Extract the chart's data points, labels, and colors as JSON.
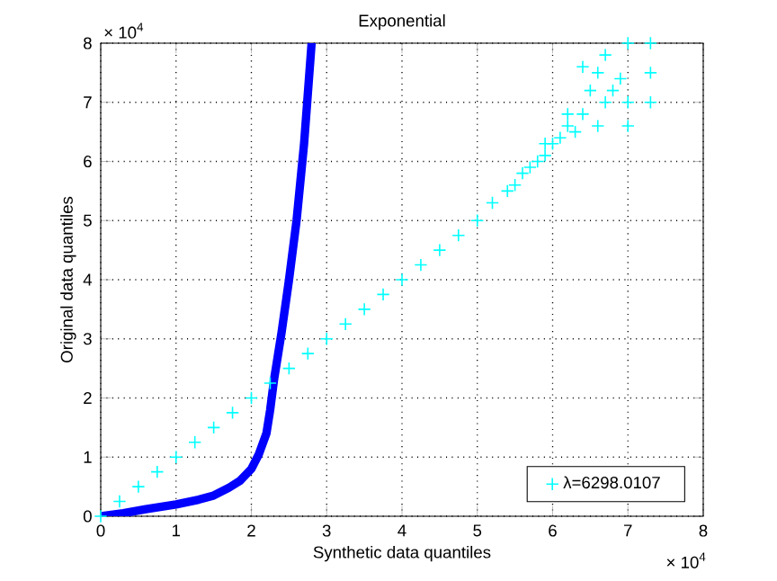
{
  "chart_data": {
    "type": "scatter",
    "title": "Exponential",
    "xlabel": "Synthetic data quantiles",
    "ylabel": "Original data quantiles",
    "annotations": [
      "× 10$^{4}$",
      "× 10$^{4}$"
    ],
    "xlim": [
      0,
      8
    ],
    "ylim": [
      0,
      8
    ],
    "xticks": [
      0,
      1,
      2,
      3,
      4,
      5,
      6,
      7,
      8
    ],
    "yticks": [
      0,
      1,
      2,
      3,
      4,
      5,
      6,
      7,
      8
    ],
    "grid": true,
    "legend": "bottom right",
    "series": [
      {
        "name": "λ=6298.0107",
        "marker": "cross",
        "color": "#00ffff",
        "x": [
          0,
          0.25,
          0.5,
          0.75,
          1,
          1.25,
          1.5,
          1.75,
          2,
          2.25,
          2.5,
          2.75,
          3,
          3.25,
          3.5,
          3.75,
          4,
          4.25,
          4.5,
          4.75,
          5,
          5.2,
          5.4,
          5.5,
          5.6,
          5.7,
          5.8,
          5.9,
          6,
          6.1,
          6.2,
          6.3,
          6.4,
          6.5,
          6.6,
          6.6,
          6.7,
          6.7,
          6.8,
          6.9,
          7.0,
          7.0,
          7.0,
          7.3,
          7.3,
          7.3,
          5.9,
          6.2,
          6.4
        ],
        "values": [
          0,
          0.25,
          0.5,
          0.75,
          1,
          1.25,
          1.5,
          1.75,
          2,
          2.25,
          2.5,
          2.75,
          3,
          3.25,
          3.5,
          3.75,
          4,
          4.25,
          4.5,
          4.75,
          5,
          5.3,
          5.5,
          5.6,
          5.8,
          5.9,
          6.0,
          6.1,
          6.3,
          6.4,
          6.6,
          6.5,
          6.8,
          7.2,
          7.5,
          6.6,
          7.8,
          7.0,
          7.2,
          7.4,
          8.0,
          7.0,
          6.6,
          7.0,
          7.5,
          8.0,
          6.3,
          6.8,
          7.6
        ]
      },
      {
        "type": "line",
        "color": "#0000ff",
        "x": [
          0,
          0.3,
          0.6,
          1,
          1.3,
          1.5,
          1.7,
          1.85,
          2,
          2.1,
          2.2,
          2.25,
          2.3,
          2.35,
          2.4,
          2.5,
          2.6,
          2.7,
          2.8
        ],
        "values": [
          0,
          0.05,
          0.12,
          0.2,
          0.28,
          0.35,
          0.48,
          0.6,
          0.8,
          1.05,
          1.4,
          1.8,
          2.3,
          2.7,
          3.1,
          4.0,
          5.0,
          6.3,
          8.0
        ]
      }
    ]
  }
}
